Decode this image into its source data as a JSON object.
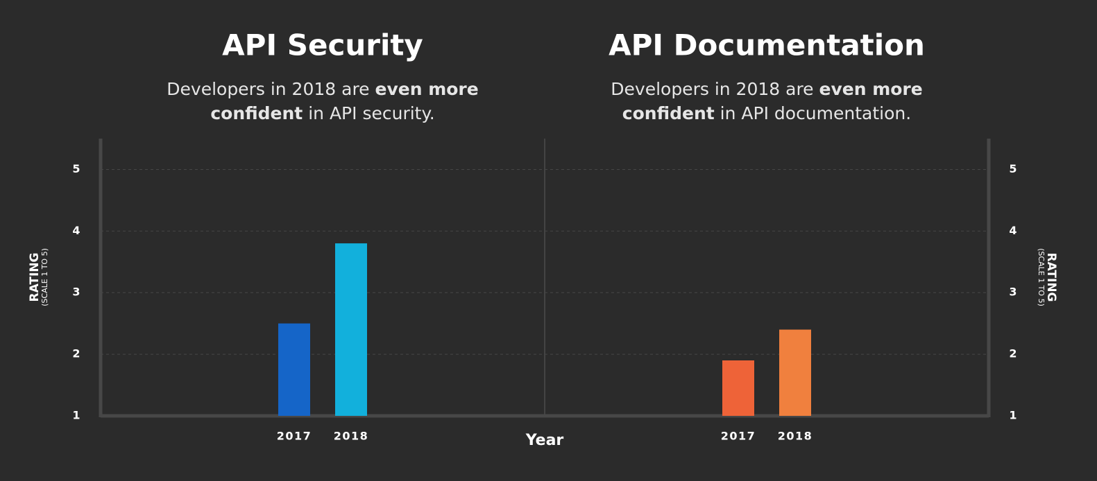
{
  "x_label": "Year",
  "chart_data": [
    {
      "type": "bar",
      "title": "API Security",
      "subtitle": [
        [
          {
            "text": "Developers in 2018 are "
          },
          {
            "text": "even more",
            "bold": true
          }
        ],
        [
          {
            "text": "confident",
            "bold": true
          },
          {
            "text": " in API security."
          }
        ]
      ],
      "categories": [
        "2017",
        "2018"
      ],
      "values": [
        2.5,
        3.8
      ],
      "colors": [
        "#1565c8",
        "#12b0dc"
      ],
      "y_label": "RATING",
      "y_sublabel": "(SCALE 1 TO 5)",
      "axis_side": "left",
      "ylim": [
        1,
        5.5
      ],
      "yticks": [
        1,
        2,
        3,
        4,
        5
      ],
      "grid": true
    },
    {
      "type": "bar",
      "title": "API Documentation",
      "subtitle": [
        [
          {
            "text": "Developers in 2018 are "
          },
          {
            "text": "even more",
            "bold": true
          }
        ],
        [
          {
            "text": "confident",
            "bold": true
          },
          {
            "text": " in API documentation."
          }
        ]
      ],
      "categories": [
        "2017",
        "2018"
      ],
      "values": [
        1.9,
        2.4
      ],
      "colors": [
        "#ee6338",
        "#f0803e"
      ],
      "y_label": "RATING",
      "y_sublabel": "(SCALE 1 TO 5)",
      "axis_side": "right",
      "ylim": [
        1,
        5.5
      ],
      "yticks": [
        1,
        2,
        3,
        4,
        5
      ],
      "grid": true
    }
  ]
}
